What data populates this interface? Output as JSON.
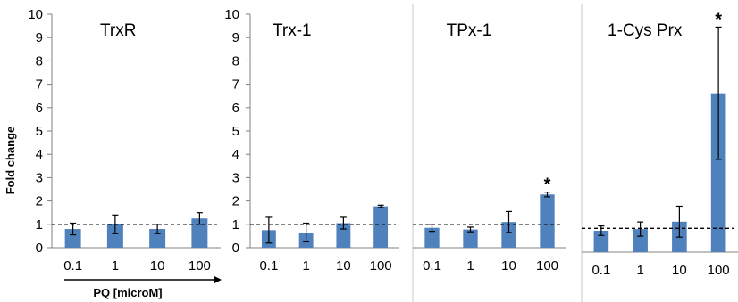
{
  "figure": {
    "ylabel": "Fold change",
    "xlabel": "PQ [microM]"
  },
  "chart_data": [
    {
      "type": "bar",
      "title": "TrxR",
      "categories": [
        "0.1",
        "1",
        "10",
        "100"
      ],
      "values": [
        0.8,
        1.0,
        0.8,
        1.25
      ],
      "errors": [
        0.25,
        0.4,
        0.2,
        0.25
      ],
      "significance": [
        "",
        "",
        "",
        ""
      ],
      "reference_line": 1,
      "ylim": [
        0,
        10
      ],
      "yticks": [
        "0",
        "1",
        "2",
        "3",
        "4",
        "5",
        "6",
        "7",
        "8",
        "9",
        "10"
      ],
      "bar_color": "#4F81BD"
    },
    {
      "type": "bar",
      "title": "Trx-1",
      "categories": [
        "0.1",
        "1",
        "10",
        "100"
      ],
      "values": [
        0.75,
        0.65,
        1.05,
        1.77
      ],
      "errors": [
        0.55,
        0.4,
        0.25,
        0.05
      ],
      "significance": [
        "",
        "",
        "",
        ""
      ],
      "reference_line": 1,
      "ylim": [
        0,
        10
      ],
      "yticks": [
        "0",
        "1",
        "2",
        "3",
        "4",
        "5",
        "6",
        "7",
        "8",
        "9",
        "10"
      ],
      "bar_color": "#4F81BD"
    },
    {
      "type": "bar",
      "title": "TPx-1",
      "categories": [
        "0.1",
        "1",
        "10",
        "100"
      ],
      "values": [
        0.85,
        0.78,
        1.1,
        2.28
      ],
      "errors": [
        0.15,
        0.1,
        0.45,
        0.1
      ],
      "significance": [
        "",
        "",
        "",
        "*"
      ],
      "reference_line": 1,
      "ylim": [
        0,
        10
      ],
      "yticks": [],
      "bar_color": "#4F81BD"
    },
    {
      "type": "bar",
      "title": "1-Cys Prx",
      "categories": [
        "0.1",
        "1",
        "10",
        "100"
      ],
      "values": [
        0.9,
        0.97,
        1.28,
        6.68
      ],
      "errors": [
        0.2,
        0.3,
        0.65,
        2.78
      ],
      "significance": [
        "",
        "",
        "",
        "*"
      ],
      "reference_line": 1,
      "ylim": [
        0,
        10
      ],
      "yticks": [],
      "bar_color": "#4F81BD"
    }
  ]
}
